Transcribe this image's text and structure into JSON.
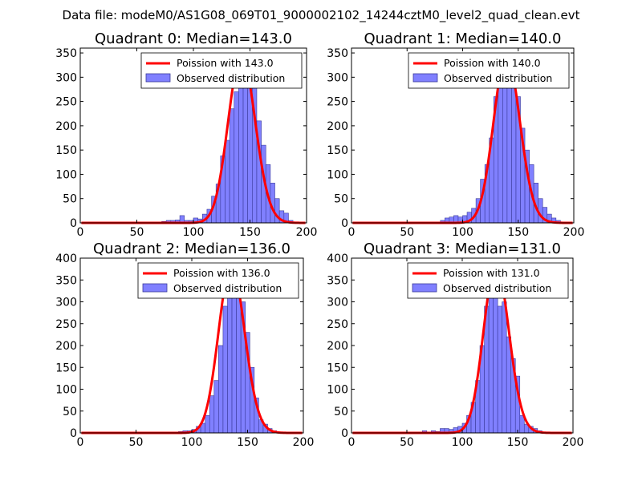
{
  "figure": {
    "suptitle": "Data file: modeM0/AS1G08_069T01_9000002102_14244cztM0_level2_quad_clean.evt",
    "colors": {
      "hist_fill": "#8080ff",
      "hist_edge": "#3a3a9a",
      "curve": "#ff0000"
    }
  },
  "chart_data": [
    {
      "type": "bar",
      "title": "Quadrant 0: Median=143.0",
      "xlim": [
        0,
        200
      ],
      "ylim": [
        0,
        360
      ],
      "xticks": [
        0,
        50,
        100,
        150,
        200
      ],
      "yticks": [
        0,
        50,
        100,
        150,
        200,
        250,
        300,
        350
      ],
      "legend": {
        "location": "top-right",
        "line_label": "Poission with 143.0",
        "hist_label": "Observed distribution"
      },
      "poisson_mean": 143.0,
      "poisson_scale": 345,
      "bin_width": 4,
      "bins": [
        [
          72,
          3
        ],
        [
          76,
          5
        ],
        [
          80,
          5
        ],
        [
          84,
          6
        ],
        [
          88,
          15
        ],
        [
          92,
          5
        ],
        [
          96,
          5
        ],
        [
          100,
          10
        ],
        [
          104,
          8
        ],
        [
          108,
          18
        ],
        [
          112,
          28
        ],
        [
          116,
          55
        ],
        [
          120,
          80
        ],
        [
          124,
          138
        ],
        [
          128,
          170
        ],
        [
          132,
          235
        ],
        [
          136,
          270
        ],
        [
          140,
          310
        ],
        [
          144,
          342
        ],
        [
          148,
          320
        ],
        [
          152,
          280
        ],
        [
          156,
          210
        ],
        [
          160,
          160
        ],
        [
          164,
          120
        ],
        [
          168,
          82
        ],
        [
          172,
          50
        ],
        [
          176,
          25
        ],
        [
          180,
          20
        ],
        [
          184,
          5
        ],
        [
          188,
          2
        ]
      ]
    },
    {
      "type": "bar",
      "title": "Quadrant 1: Median=140.0",
      "xlim": [
        0,
        200
      ],
      "ylim": [
        0,
        360
      ],
      "xticks": [
        0,
        50,
        100,
        150,
        200
      ],
      "yticks": [
        0,
        50,
        100,
        150,
        200,
        250,
        300,
        350
      ],
      "legend": {
        "location": "top-right",
        "line_label": "Poission with 140.0",
        "hist_label": "Observed distribution"
      },
      "poisson_mean": 140.0,
      "poisson_scale": 345,
      "bin_width": 4,
      "bins": [
        [
          80,
          5
        ],
        [
          84,
          10
        ],
        [
          88,
          12
        ],
        [
          92,
          15
        ],
        [
          96,
          12
        ],
        [
          100,
          15
        ],
        [
          104,
          22
        ],
        [
          108,
          30
        ],
        [
          112,
          50
        ],
        [
          116,
          90
        ],
        [
          120,
          120
        ],
        [
          124,
          175
        ],
        [
          128,
          260
        ],
        [
          132,
          310
        ],
        [
          136,
          345
        ],
        [
          140,
          330
        ],
        [
          144,
          320
        ],
        [
          148,
          260
        ],
        [
          152,
          195
        ],
        [
          156,
          150
        ],
        [
          160,
          120
        ],
        [
          164,
          82
        ],
        [
          168,
          50
        ],
        [
          172,
          32
        ],
        [
          176,
          18
        ],
        [
          180,
          10
        ],
        [
          184,
          5
        ],
        [
          188,
          2
        ]
      ]
    },
    {
      "type": "bar",
      "title": "Quadrant 2: Median=136.0",
      "xlim": [
        0,
        200
      ],
      "ylim": [
        0,
        400
      ],
      "xticks": [
        0,
        50,
        100,
        150,
        200
      ],
      "yticks": [
        0,
        50,
        100,
        150,
        200,
        250,
        300,
        350,
        400
      ],
      "legend": {
        "location": "top-right",
        "line_label": "Poission with 136.0",
        "hist_label": "Observed distribution"
      },
      "poisson_mean": 136.0,
      "poisson_scale": 383,
      "bin_width": 4,
      "bins": [
        [
          88,
          3
        ],
        [
          92,
          5
        ],
        [
          96,
          5
        ],
        [
          100,
          8
        ],
        [
          104,
          15
        ],
        [
          108,
          22
        ],
        [
          112,
          40
        ],
        [
          116,
          85
        ],
        [
          120,
          120
        ],
        [
          124,
          200
        ],
        [
          128,
          290
        ],
        [
          132,
          360
        ],
        [
          136,
          320
        ],
        [
          140,
          360
        ],
        [
          144,
          300
        ],
        [
          148,
          230
        ],
        [
          152,
          150
        ],
        [
          156,
          80
        ],
        [
          160,
          30
        ],
        [
          164,
          20
        ],
        [
          168,
          10
        ],
        [
          172,
          5
        ]
      ]
    },
    {
      "type": "bar",
      "title": "Quadrant 3: Median=131.0",
      "xlim": [
        0,
        200
      ],
      "ylim": [
        0,
        400
      ],
      "xticks": [
        0,
        50,
        100,
        150,
        200
      ],
      "yticks": [
        0,
        50,
        100,
        150,
        200,
        250,
        300,
        350,
        400
      ],
      "legend": {
        "location": "top-right",
        "line_label": "Poission with 131.0",
        "hist_label": "Observed distribution"
      },
      "poisson_mean": 131.0,
      "poisson_scale": 385,
      "bin_width": 4,
      "bins": [
        [
          64,
          5
        ],
        [
          72,
          5
        ],
        [
          76,
          3
        ],
        [
          80,
          10
        ],
        [
          84,
          10
        ],
        [
          88,
          8
        ],
        [
          92,
          12
        ],
        [
          96,
          15
        ],
        [
          100,
          22
        ],
        [
          104,
          40
        ],
        [
          108,
          70
        ],
        [
          112,
          120
        ],
        [
          116,
          200
        ],
        [
          120,
          290
        ],
        [
          124,
          370
        ],
        [
          128,
          350
        ],
        [
          132,
          290
        ],
        [
          136,
          300
        ],
        [
          140,
          220
        ],
        [
          144,
          170
        ],
        [
          148,
          130
        ],
        [
          152,
          40
        ],
        [
          156,
          20
        ],
        [
          160,
          15
        ],
        [
          164,
          10
        ],
        [
          168,
          5
        ]
      ]
    }
  ]
}
